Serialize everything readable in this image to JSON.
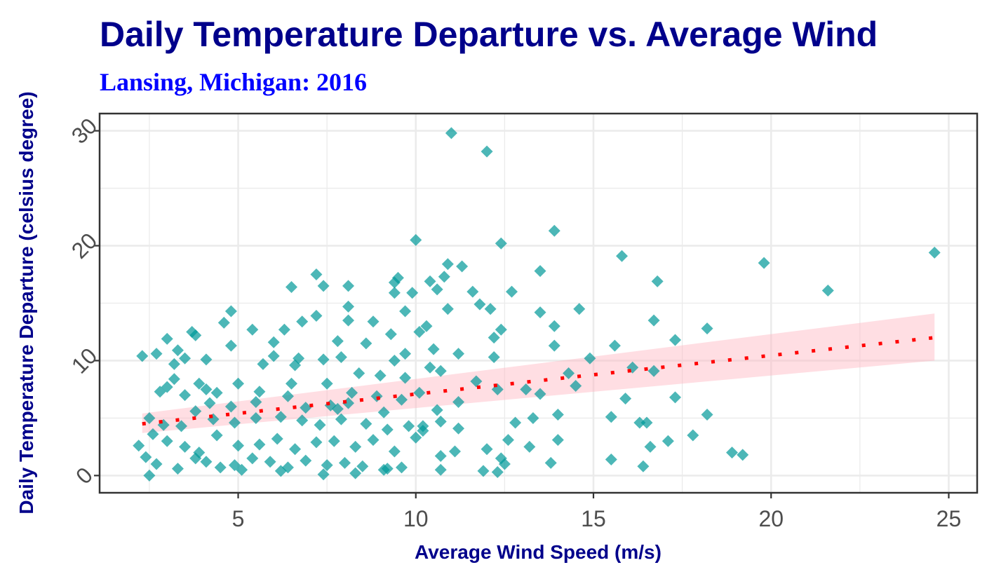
{
  "chart_data": {
    "type": "scatter",
    "title": "Daily Temperature Departure vs. Average Wind",
    "subtitle": "Lansing, Michigan: 2016",
    "xlabel": "Average Wind Speed (m/s)",
    "ylabel": "Daily Temperature Departure (celsius degree)",
    "xlim": [
      1.1,
      25.8
    ],
    "ylim": [
      -1.5,
      31.5
    ],
    "x_ticks": [
      5,
      10,
      15,
      20,
      25
    ],
    "y_ticks": [
      0,
      10,
      20,
      30
    ],
    "x_tick_labels": [
      "5",
      "10",
      "15",
      "20",
      "25"
    ],
    "y_tick_labels": [
      "0",
      "10",
      "20",
      "30"
    ],
    "grid": true,
    "legend": "none",
    "point_shape": "diamond",
    "colors": {
      "points": "#009999",
      "trend_line": "#FF0000",
      "confidence_band": "#FFB6C1",
      "title": "#00008B",
      "subtitle": "#0000FF",
      "axis_title": "#00008B",
      "tick_label": "#4D4D4D",
      "grid": "#EBEBEB",
      "panel_border": "#333333"
    },
    "trend": {
      "method": "linear",
      "x": [
        2.3,
        24.6
      ],
      "y": [
        4.5,
        12.0
      ],
      "band_lower": [
        3.7,
        10.0
      ],
      "band_upper": [
        5.4,
        14.1
      ]
    },
    "points": [
      [
        11.0,
        29.8
      ],
      [
        12.0,
        28.2
      ],
      [
        13.9,
        21.3
      ],
      [
        10.0,
        20.5
      ],
      [
        12.4,
        20.2
      ],
      [
        24.6,
        19.4
      ],
      [
        15.8,
        19.1
      ],
      [
        19.8,
        18.5
      ],
      [
        10.9,
        18.4
      ],
      [
        11.3,
        18.2
      ],
      [
        13.5,
        17.8
      ],
      [
        7.2,
        17.5
      ],
      [
        9.5,
        17.2
      ],
      [
        10.8,
        17.3
      ],
      [
        16.8,
        16.9
      ],
      [
        9.4,
        16.8
      ],
      [
        10.4,
        16.9
      ],
      [
        7.4,
        16.5
      ],
      [
        8.1,
        16.5
      ],
      [
        6.5,
        16.4
      ],
      [
        10.6,
        16.2
      ],
      [
        21.6,
        16.1
      ],
      [
        11.6,
        16.0
      ],
      [
        9.4,
        15.9
      ],
      [
        12.7,
        16.0
      ],
      [
        9.9,
        15.9
      ],
      [
        11.8,
        14.9
      ],
      [
        8.1,
        14.7
      ],
      [
        10.9,
        14.5
      ],
      [
        12.1,
        14.5
      ],
      [
        4.8,
        14.3
      ],
      [
        9.7,
        14.3
      ],
      [
        14.6,
        14.5
      ],
      [
        13.5,
        14.2
      ],
      [
        3.7,
        12.5
      ],
      [
        5.4,
        12.7
      ],
      [
        7.2,
        13.9
      ],
      [
        8.1,
        13.5
      ],
      [
        4.6,
        13.3
      ],
      [
        6.8,
        13.4
      ],
      [
        8.8,
        13.4
      ],
      [
        3.8,
        12.2
      ],
      [
        6.3,
        12.7
      ],
      [
        12.4,
        12.7
      ],
      [
        16.7,
        13.5
      ],
      [
        13.9,
        13.0
      ],
      [
        18.2,
        12.8
      ],
      [
        2.3,
        10.4
      ],
      [
        2.7,
        10.6
      ],
      [
        3.0,
        11.9
      ],
      [
        4.8,
        11.3
      ],
      [
        6.0,
        11.6
      ],
      [
        7.8,
        11.7
      ],
      [
        8.6,
        11.5
      ],
      [
        9.3,
        12.3
      ],
      [
        10.1,
        12.5
      ],
      [
        10.3,
        13.0
      ],
      [
        12.2,
        12.0
      ],
      [
        13.9,
        11.3
      ],
      [
        15.6,
        11.3
      ],
      [
        17.3,
        11.8
      ],
      [
        3.3,
        10.9
      ],
      [
        3.5,
        10.2
      ],
      [
        4.1,
        10.1
      ],
      [
        6.0,
        10.4
      ],
      [
        6.7,
        10.2
      ],
      [
        7.4,
        10.1
      ],
      [
        7.9,
        10.3
      ],
      [
        9.4,
        10.0
      ],
      [
        9.7,
        10.6
      ],
      [
        10.5,
        11.0
      ],
      [
        11.2,
        10.6
      ],
      [
        12.2,
        10.3
      ],
      [
        14.9,
        10.2
      ],
      [
        3.2,
        9.7
      ],
      [
        3.9,
        8.0
      ],
      [
        4.4,
        7.2
      ],
      [
        5.0,
        8.0
      ],
      [
        5.7,
        9.7
      ],
      [
        6.6,
        9.6
      ],
      [
        7.5,
        8.0
      ],
      [
        8.4,
        8.9
      ],
      [
        9.0,
        8.7
      ],
      [
        9.7,
        8.5
      ],
      [
        10.4,
        9.4
      ],
      [
        10.7,
        9.1
      ],
      [
        11.7,
        8.2
      ],
      [
        13.1,
        7.5
      ],
      [
        14.3,
        8.9
      ],
      [
        16.1,
        9.4
      ],
      [
        16.7,
        9.1
      ],
      [
        2.8,
        7.3
      ],
      [
        3.0,
        7.7
      ],
      [
        3.5,
        7.0
      ],
      [
        4.2,
        6.3
      ],
      [
        4.8,
        6.0
      ],
      [
        5.5,
        6.4
      ],
      [
        6.4,
        6.9
      ],
      [
        6.9,
        5.9
      ],
      [
        7.6,
        6.1
      ],
      [
        8.2,
        7.2
      ],
      [
        8.9,
        6.9
      ],
      [
        9.6,
        6.6
      ],
      [
        10.1,
        7.2
      ],
      [
        10.6,
        5.7
      ],
      [
        11.2,
        6.4
      ],
      [
        12.3,
        7.5
      ],
      [
        13.5,
        7.1
      ],
      [
        14.5,
        7.8
      ],
      [
        15.9,
        6.7
      ],
      [
        17.3,
        6.8
      ],
      [
        2.5,
        5.0
      ],
      [
        2.9,
        4.4
      ],
      [
        3.4,
        4.3
      ],
      [
        3.8,
        5.6
      ],
      [
        4.3,
        4.9
      ],
      [
        4.9,
        4.6
      ],
      [
        5.5,
        5.0
      ],
      [
        6.2,
        5.1
      ],
      [
        6.8,
        4.8
      ],
      [
        7.3,
        4.4
      ],
      [
        7.9,
        4.9
      ],
      [
        8.6,
        4.5
      ],
      [
        9.2,
        4.0
      ],
      [
        9.8,
        4.3
      ],
      [
        10.2,
        4.3
      ],
      [
        10.7,
        4.7
      ],
      [
        11.2,
        4.1
      ],
      [
        12.8,
        4.6
      ],
      [
        13.3,
        5.0
      ],
      [
        14.0,
        5.3
      ],
      [
        15.5,
        5.1
      ],
      [
        16.3,
        4.6
      ],
      [
        16.5,
        4.6
      ],
      [
        18.2,
        5.3
      ],
      [
        2.2,
        2.6
      ],
      [
        2.6,
        3.6
      ],
      [
        3.0,
        3.0
      ],
      [
        3.5,
        2.5
      ],
      [
        3.9,
        2.0
      ],
      [
        4.4,
        3.5
      ],
      [
        5.0,
        2.6
      ],
      [
        5.6,
        2.7
      ],
      [
        6.1,
        3.2
      ],
      [
        6.6,
        2.3
      ],
      [
        7.2,
        2.9
      ],
      [
        7.7,
        3.0
      ],
      [
        8.3,
        2.5
      ],
      [
        8.8,
        3.1
      ],
      [
        9.4,
        2.1
      ],
      [
        10.0,
        3.3
      ],
      [
        10.2,
        3.9
      ],
      [
        12.6,
        3.1
      ],
      [
        13.2,
        2.5
      ],
      [
        14.0,
        3.1
      ],
      [
        17.1,
        3.0
      ],
      [
        17.8,
        3.5
      ],
      [
        2.4,
        1.6
      ],
      [
        2.7,
        1.0
      ],
      [
        3.3,
        0.6
      ],
      [
        3.8,
        1.5
      ],
      [
        4.5,
        0.7
      ],
      [
        4.9,
        0.9
      ],
      [
        5.4,
        1.5
      ],
      [
        5.9,
        1.2
      ],
      [
        6.4,
        0.7
      ],
      [
        6.9,
        1.3
      ],
      [
        7.5,
        0.9
      ],
      [
        8.0,
        1.1
      ],
      [
        8.5,
        0.8
      ],
      [
        9.2,
        0.6
      ],
      [
        9.6,
        0.7
      ],
      [
        10.7,
        1.7
      ],
      [
        11.1,
        2.1
      ],
      [
        12.0,
        2.3
      ],
      [
        12.4,
        1.5
      ],
      [
        13.8,
        1.1
      ],
      [
        15.5,
        1.4
      ],
      [
        16.4,
        0.8
      ],
      [
        16.6,
        2.5
      ],
      [
        18.9,
        2.0
      ],
      [
        19.2,
        1.8
      ],
      [
        2.5,
        0.0
      ],
      [
        4.1,
        1.2
      ],
      [
        5.1,
        0.5
      ],
      [
        6.2,
        0.4
      ],
      [
        7.4,
        0.1
      ],
      [
        8.3,
        0.2
      ],
      [
        9.1,
        0.5
      ],
      [
        10.7,
        0.5
      ],
      [
        11.9,
        0.4
      ],
      [
        12.3,
        0.3
      ],
      [
        12.5,
        1.0
      ],
      [
        3.2,
        8.4
      ],
      [
        5.6,
        7.3
      ],
      [
        6.5,
        8.0
      ],
      [
        7.8,
        5.8
      ],
      [
        8.1,
        6.3
      ],
      [
        9.1,
        5.5
      ],
      [
        4.1,
        7.5
      ]
    ]
  }
}
